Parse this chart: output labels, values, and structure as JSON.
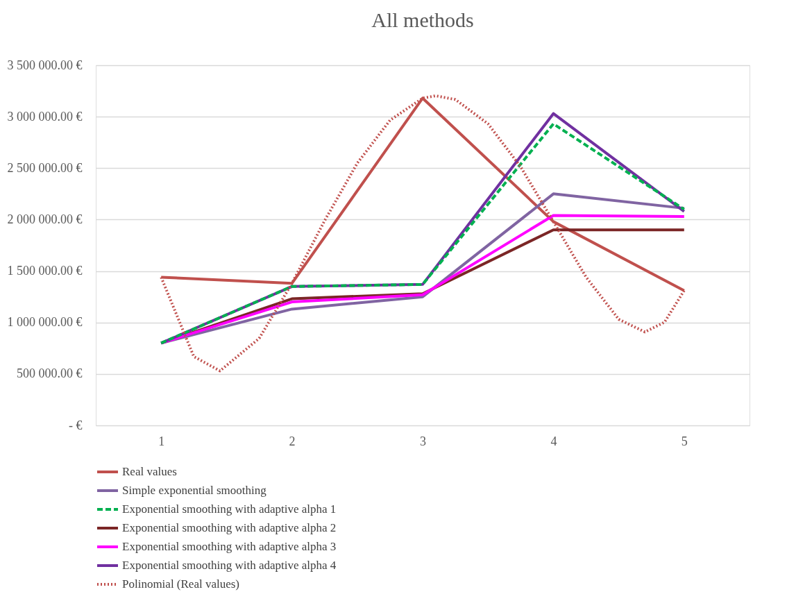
{
  "chart_data": {
    "type": "line",
    "title": "All methods",
    "x": [
      1,
      2,
      3,
      4,
      5
    ],
    "xlim": [
      0.5,
      5.5
    ],
    "xticks": [
      1,
      2,
      3,
      4,
      5
    ],
    "ylim": [
      0,
      3500000
    ],
    "yticks": [
      {
        "value": 0,
        "label": "-   €"
      },
      {
        "value": 500000,
        "label": "500 000.00 €"
      },
      {
        "value": 1000000,
        "label": "1 000 000.00 €"
      },
      {
        "value": 1500000,
        "label": "1 500 000.00 €"
      },
      {
        "value": 2000000,
        "label": "2 000 000.00 €"
      },
      {
        "value": 2500000,
        "label": "2 500 000.00 €"
      },
      {
        "value": 3000000,
        "label": "3 000 000.00 €"
      },
      {
        "value": 3500000,
        "label": "3 500 000.00 €"
      }
    ],
    "grid": "y",
    "legend": "bottom",
    "marker": "none",
    "series": [
      {
        "name": "Real values",
        "color": "#c0504d",
        "line_style": "solid",
        "values": [
          1440000,
          1380000,
          3180000,
          1980000,
          1310000
        ]
      },
      {
        "name": "Simple exponential smoothing",
        "color": "#8064a2",
        "line_style": "solid",
        "values": [
          800000,
          1130000,
          1250000,
          2250000,
          2110000
        ]
      },
      {
        "name": "Exponential smoothing with adaptive alpha 1",
        "color": "#00b050",
        "line_style": "dashed",
        "values": [
          800000,
          1350000,
          1370000,
          2930000,
          2100000
        ]
      },
      {
        "name": "Exponential smoothing with adaptive alpha 2",
        "color": "#7b2626",
        "line_style": "solid",
        "values": [
          800000,
          1230000,
          1280000,
          1900000,
          1900000
        ]
      },
      {
        "name": "Exponential smoothing with adaptive alpha 3",
        "color": "#ff00ff",
        "line_style": "solid",
        "values": [
          800000,
          1200000,
          1270000,
          2040000,
          2030000
        ]
      },
      {
        "name": "Exponential smoothing with adaptive alpha 4",
        "color": "#7030a0",
        "line_style": "solid",
        "values": [
          800000,
          1350000,
          1370000,
          3030000,
          2080000
        ]
      },
      {
        "name": "Polinomial (Real values)",
        "color": "#c0504d",
        "line_style": "dotted",
        "x": [
          1,
          1.25,
          1.45,
          1.75,
          2,
          2.25,
          2.5,
          2.75,
          3,
          3.1,
          3.25,
          3.5,
          3.75,
          4,
          4.25,
          4.5,
          4.7,
          4.85,
          5
        ],
        "values": [
          1440000,
          669000,
          530000,
          846000,
          1380000,
          1989000,
          2548000,
          2965000,
          3180000,
          3203000,
          3167000,
          2931000,
          2512000,
          1980000,
          1441000,
          1031000,
          908000,
          1003000,
          1310000
        ]
      }
    ]
  }
}
